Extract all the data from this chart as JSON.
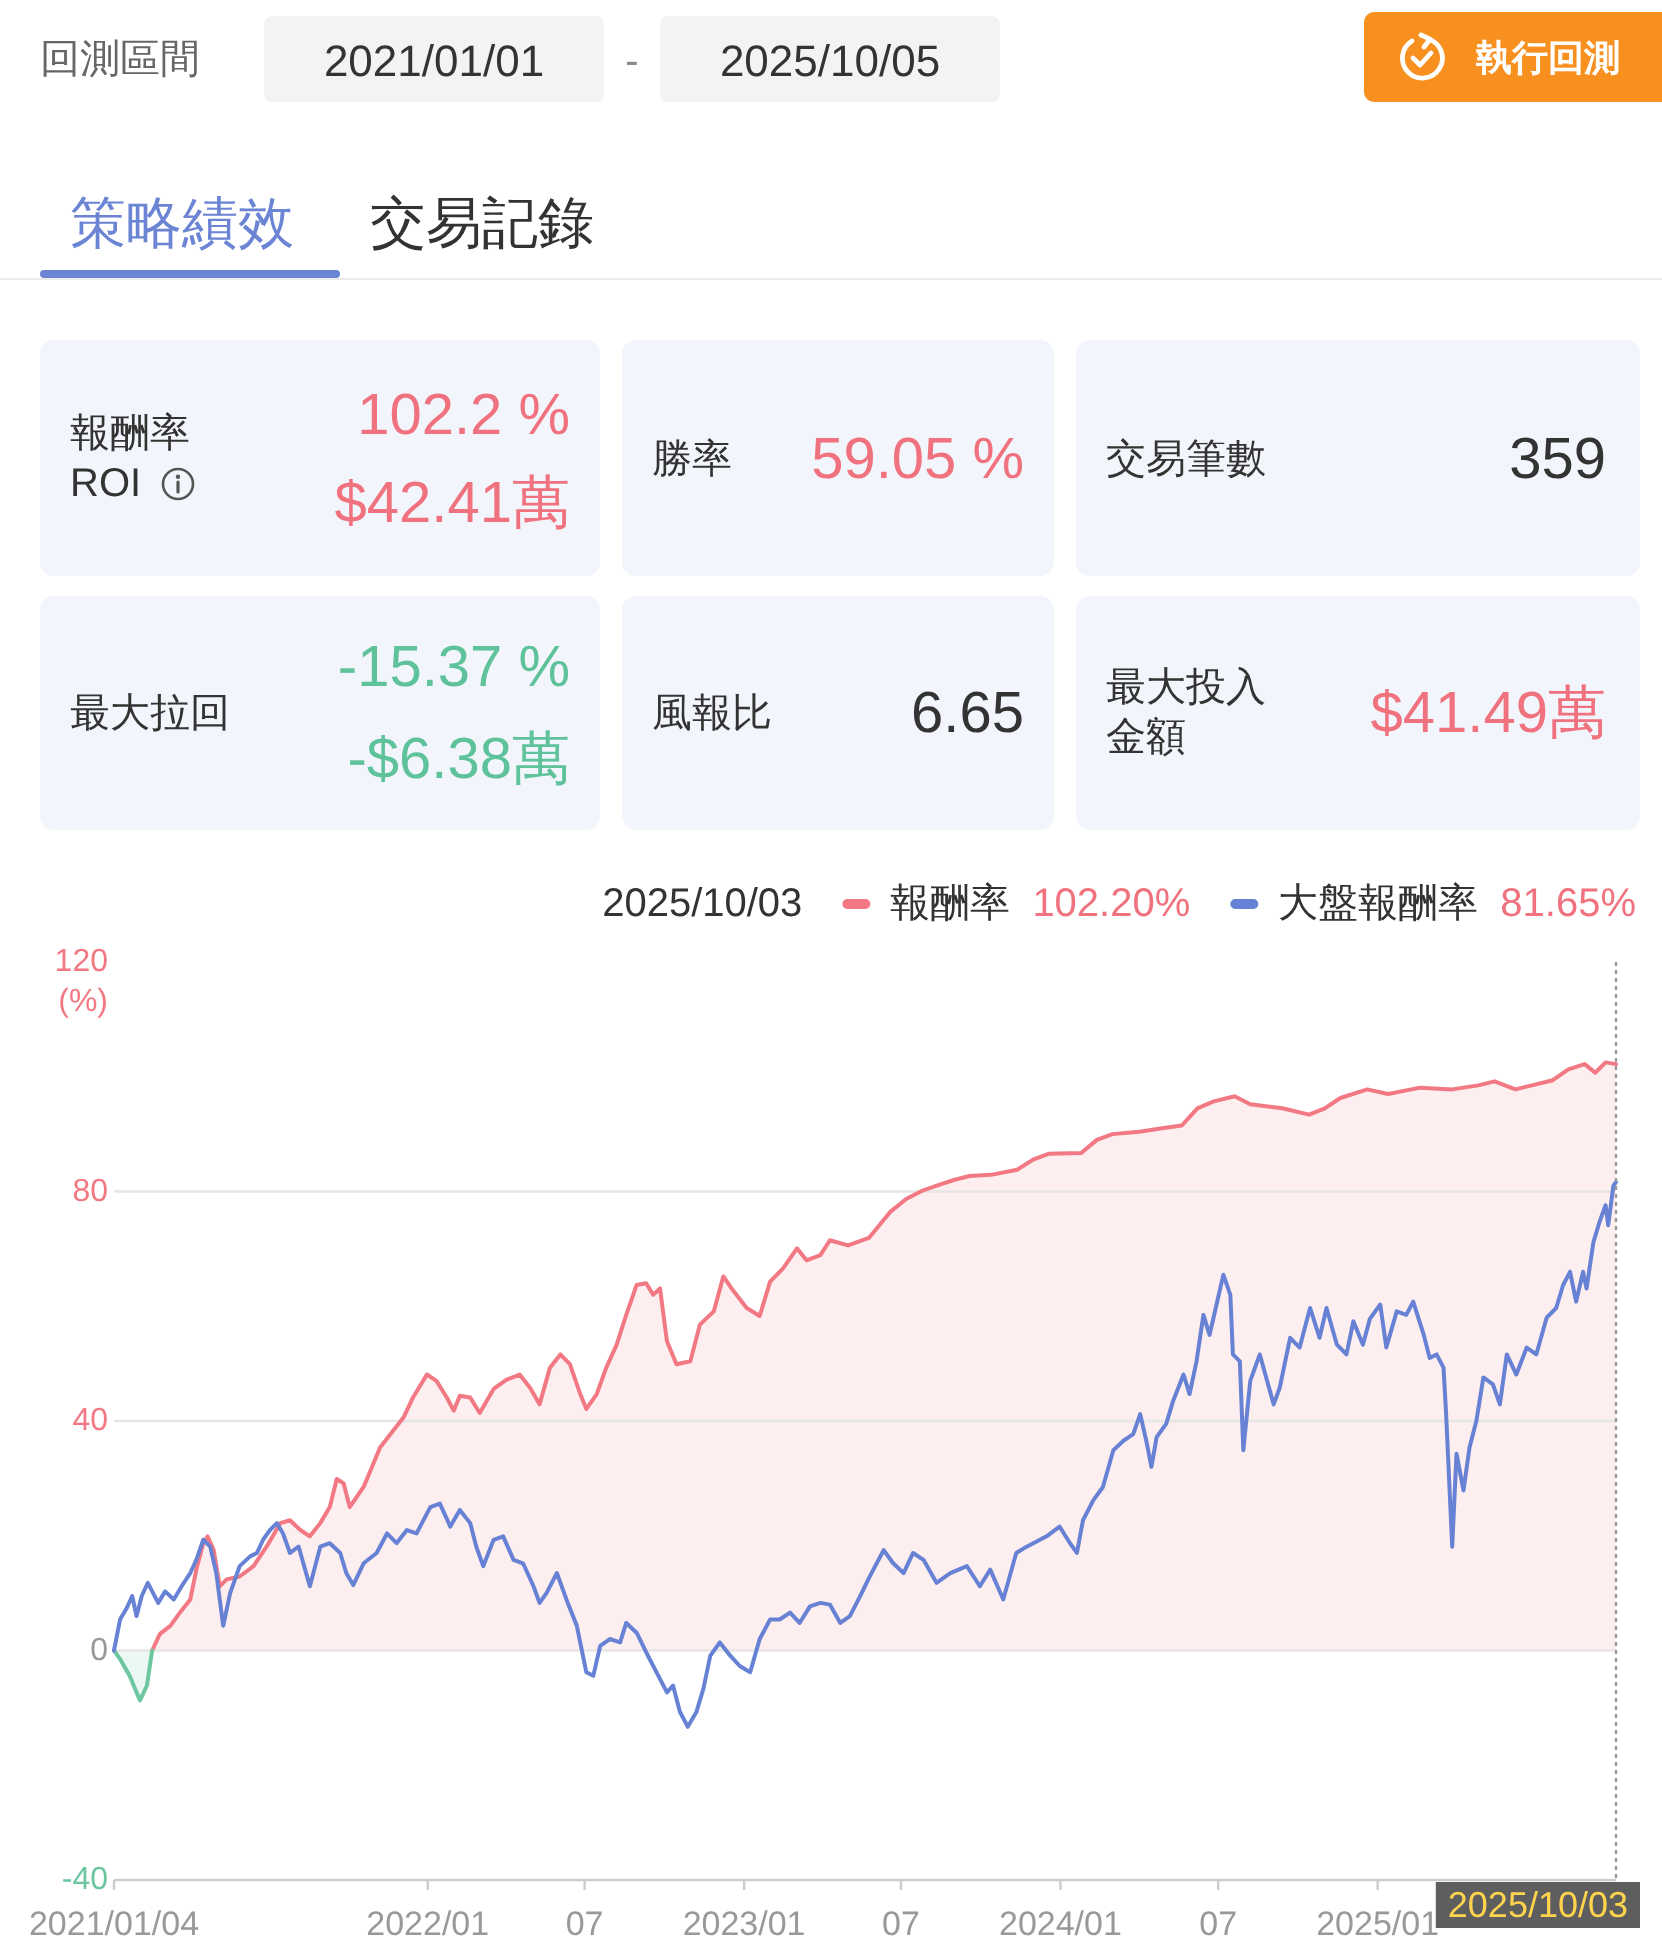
{
  "chart_data": [
    {
      "type": "other",
      "annotations": [
        "回測區間",
        "2021/01/01",
        "-",
        "2025/10/05",
        "執行回測",
        "策略績效",
        "交易記錄",
        "報酬率",
        "ROI",
        "102.2 %",
        "$42.41萬",
        "勝率",
        "59.05 %",
        "交易筆數",
        "359",
        "最大拉回",
        "-15.37 %",
        "-$6.38萬",
        "風報比",
        "6.65",
        "最大投入金額",
        "$41.49萬"
      ]
    },
    {
      "type": "line",
      "ylabel": "(%)",
      "annotations": [
        "2025/10/03",
        "102.20%",
        "81.65%"
      ],
      "xlim": [
        "2021-01-04",
        "2025-10-03"
      ],
      "xticks": [
        {
          "value": "2021-01-04",
          "label": "2021/01/04"
        },
        {
          "value": "2022-01",
          "label": "2022/01"
        },
        {
          "value": "2022-07",
          "label": "07"
        },
        {
          "value": "2023-01",
          "label": "2023/01"
        },
        {
          "value": "2023-07",
          "label": "07"
        },
        {
          "value": "2024-01",
          "label": "2024/01"
        },
        {
          "value": "2024-07",
          "label": "07"
        },
        {
          "value": "2025-01",
          "label": "2025/01"
        }
      ],
      "ylim": [
        -40,
        120
      ],
      "yticks": [
        -40,
        0,
        40,
        80,
        120
      ],
      "grid": "y",
      "legend": "top right",
      "ref_lines": [
        {
          "axis": "x",
          "value": "2025-10-03",
          "label": "2025/10/03",
          "line_style": "dotted"
        }
      ],
      "series": [
        {
          "name": "報酬率",
          "type": "area",
          "color": "#f27983",
          "x": [
            "2021-02-17",
            "2021-02-26",
            "2021-03-10",
            "2021-03-21",
            "2021-04-02",
            "2021-04-09",
            "2021-04-17",
            "2021-04-22",
            "2021-04-29",
            "2021-05-06",
            "2021-05-14",
            "2021-05-29",
            "2021-06-14",
            "2021-06-29",
            "2021-07-15",
            "2021-07-26",
            "2021-08-07",
            "2021-08-18",
            "2021-08-30",
            "2021-09-10",
            "2021-09-18",
            "2021-09-26",
            "2021-10-03",
            "2021-10-19",
            "2021-11-07",
            "2021-11-22",
            "2021-12-04",
            "2021-12-15",
            "2021-12-31",
            "2022-01-11",
            "2022-01-23",
            "2022-01-31",
            "2022-02-07",
            "2022-02-19",
            "2022-03-02",
            "2022-03-18",
            "2022-04-02",
            "2022-04-17",
            "2022-04-29",
            "2022-05-10",
            "2022-05-22",
            "2022-06-03",
            "2022-06-14",
            "2022-06-26",
            "2022-07-03",
            "2022-07-15",
            "2022-07-26",
            "2022-08-07",
            "2022-08-18",
            "2022-08-30",
            "2022-09-10",
            "2022-09-18",
            "2022-09-26",
            "2022-10-04",
            "2022-10-15",
            "2022-10-31",
            "2022-11-11",
            "2022-11-27",
            "2022-12-08",
            "2022-12-20",
            "2023-01-04",
            "2023-01-19",
            "2023-01-31",
            "2023-02-15",
            "2023-03-03",
            "2023-03-14",
            "2023-03-30",
            "2023-04-10",
            "2023-05-01",
            "2023-05-25",
            "2023-06-19",
            "2023-07-07",
            "2023-07-25",
            "2023-08-13",
            "2023-08-31",
            "2023-09-18",
            "2023-10-13",
            "2023-11-12",
            "2023-12-01",
            "2023-12-19",
            "2024-01-25",
            "2024-02-12",
            "2024-03-01",
            "2024-04-01",
            "2024-05-01",
            "2024-05-20",
            "2024-06-07",
            "2024-06-26",
            "2024-07-20",
            "2024-08-07",
            "2024-09-13",
            "2024-10-14",
            "2024-11-01",
            "2024-11-19",
            "2024-12-20",
            "2025-01-13",
            "2025-02-19",
            "2025-03-28",
            "2025-04-27",
            "2025-05-16",
            "2025-06-09",
            "2025-06-28",
            "2025-07-22",
            "2025-08-09",
            "2025-08-28",
            "2025-09-09",
            "2025-09-21",
            "2025-10-03"
          ],
          "values": [
            0,
            2.9,
            4.3,
            6.6,
            8.9,
            14.1,
            18.7,
            19.9,
            17.5,
            11.2,
            12.4,
            12.9,
            14.7,
            18.1,
            22.2,
            22.7,
            21.0,
            19.9,
            22.2,
            25.0,
            29.9,
            29.1,
            25.0,
            28.5,
            35.4,
            38.3,
            40.6,
            44.1,
            48.1,
            47.0,
            44.1,
            41.8,
            44.4,
            44.1,
            41.4,
            45.6,
            47.2,
            48.1,
            45.8,
            42.9,
            49.3,
            51.6,
            49.9,
            44.7,
            42.1,
            44.7,
            49.3,
            53.3,
            58.5,
            63.7,
            64.0,
            62.0,
            63.1,
            53.9,
            49.9,
            50.4,
            56.8,
            59.1,
            65.2,
            62.6,
            59.7,
            58.3,
            64.3,
            66.6,
            70.1,
            68.0,
            68.9,
            71.5,
            70.6,
            71.9,
            76.5,
            78.7,
            80.1,
            81.1,
            82.0,
            82.7,
            82.9,
            83.8,
            85.6,
            86.6,
            86.7,
            89.0,
            90.0,
            90.4,
            91.1,
            91.5,
            94.5,
            95.7,
            96.6,
            95.2,
            94.5,
            93.4,
            94.5,
            96.3,
            97.8,
            97.0,
            98.1,
            97.8,
            98.5,
            99.2,
            97.8,
            98.5,
            99.4,
            101.3,
            102.2,
            100.7,
            102.5,
            102.2
          ]
        },
        {
          "type": "area",
          "color": "#6cc6a0",
          "x": [
            "2021-01-04",
            "2021-01-11",
            "2021-01-22",
            "2021-02-03",
            "2021-02-11",
            "2021-02-17"
          ],
          "values": [
            0,
            -1.5,
            -4.4,
            -8.7,
            -6.1,
            0
          ]
        },
        {
          "name": "大盤報酬率",
          "type": "line",
          "color": "#6782d4",
          "x": [
            "2021-01-04",
            "2021-01-11",
            "2021-01-19",
            "2021-01-25",
            "2021-01-30",
            "2021-02-05",
            "2021-02-12",
            "2021-02-24",
            "2021-03-04",
            "2021-03-14",
            "2021-03-23",
            "2021-04-02",
            "2021-04-09",
            "2021-04-17",
            "2021-04-25",
            "2021-05-02",
            "2021-05-10",
            "2021-05-18",
            "2021-05-29",
            "2021-06-10",
            "2021-06-18",
            "2021-06-25",
            "2021-07-03",
            "2021-07-11",
            "2021-07-18",
            "2021-07-26",
            "2021-08-05",
            "2021-08-18",
            "2021-08-30",
            "2021-09-10",
            "2021-09-22",
            "2021-09-29",
            "2021-10-07",
            "2021-10-19",
            "2021-11-03",
            "2021-11-15",
            "2021-11-26",
            "2021-12-08",
            "2021-12-19",
            "2022-01-04",
            "2022-01-15",
            "2022-01-27",
            "2022-02-07",
            "2022-02-19",
            "2022-02-26",
            "2022-03-06",
            "2022-03-18",
            "2022-03-29",
            "2022-04-10",
            "2022-04-21",
            "2022-05-03",
            "2022-05-10",
            "2022-05-18",
            "2022-05-30",
            "2022-06-10",
            "2022-06-22",
            "2022-07-03",
            "2022-07-11",
            "2022-07-19",
            "2022-07-30",
            "2022-08-11",
            "2022-08-18",
            "2022-08-30",
            "2022-09-10",
            "2022-09-22",
            "2022-10-04",
            "2022-10-11",
            "2022-10-19",
            "2022-10-28",
            "2022-11-07",
            "2022-11-15",
            "2022-11-23",
            "2022-12-04",
            "2022-12-16",
            "2022-12-27",
            "2023-01-08",
            "2023-01-19",
            "2023-01-31",
            "2023-02-11",
            "2023-02-23",
            "2023-03-06",
            "2023-03-18",
            "2023-03-30",
            "2023-04-10",
            "2023-04-22",
            "2023-05-03",
            "2023-05-15",
            "2023-05-26",
            "2023-06-11",
            "2023-06-22",
            "2023-07-04",
            "2023-07-15",
            "2023-07-27",
            "2023-08-11",
            "2023-08-27",
            "2023-09-15",
            "2023-09-30",
            "2023-10-12",
            "2023-10-27",
            "2023-11-11",
            "2023-11-23",
            "2023-12-16",
            "2023-12-31",
            "2024-01-12",
            "2024-01-20",
            "2024-01-27",
            "2024-02-08",
            "2024-02-19",
            "2024-03-02",
            "2024-03-14",
            "2024-03-25",
            "2024-04-02",
            "2024-04-09",
            "2024-04-15",
            "2024-04-21",
            "2024-05-02",
            "2024-05-10",
            "2024-05-22",
            "2024-05-29",
            "2024-06-06",
            "2024-06-14",
            "2024-06-21",
            "2024-07-07",
            "2024-07-15",
            "2024-07-18",
            "2024-07-26",
            "2024-07-30",
            "2024-08-07",
            "2024-08-18",
            "2024-09-03",
            "2024-09-10",
            "2024-09-22",
            "2024-10-03",
            "2024-10-15",
            "2024-10-26",
            "2024-11-03",
            "2024-11-15",
            "2024-11-26",
            "2024-12-04",
            "2024-12-15",
            "2024-12-23",
            "2025-01-04",
            "2025-01-11",
            "2025-01-23",
            "2025-02-03",
            "2025-02-11",
            "2025-02-23",
            "2025-03-02",
            "2025-03-10",
            "2025-03-18",
            "2025-03-21",
            "2025-03-28",
            "2025-04-02",
            "2025-04-10",
            "2025-04-17",
            "2025-04-25",
            "2025-05-03",
            "2025-05-14",
            "2025-05-22",
            "2025-05-30",
            "2025-06-10",
            "2025-06-22",
            "2025-07-03",
            "2025-07-15",
            "2025-07-26",
            "2025-08-03",
            "2025-08-11",
            "2025-08-18",
            "2025-08-26",
            "2025-08-30",
            "2025-09-07",
            "2025-09-14",
            "2025-09-21",
            "2025-09-24",
            "2025-09-30",
            "2025-10-03"
          ],
          "values": [
            0,
            5.4,
            7.5,
            9.5,
            6.0,
            9.5,
            11.8,
            8.3,
            10.3,
            8.9,
            11.2,
            13.5,
            15.8,
            19.3,
            18.1,
            13.5,
            4.3,
            10.0,
            14.7,
            16.4,
            17.0,
            19.3,
            21.0,
            22.2,
            20.4,
            17.0,
            18.1,
            11.2,
            18.1,
            18.7,
            17.0,
            13.5,
            11.4,
            15.2,
            17.0,
            20.4,
            18.7,
            21.0,
            20.4,
            25.0,
            25.6,
            21.6,
            24.5,
            22.2,
            18.1,
            14.7,
            19.3,
            19.9,
            15.8,
            15.2,
            11.2,
            8.3,
            10.0,
            13.5,
            8.9,
            4.3,
            -3.8,
            -4.4,
            0.8,
            2.0,
            1.4,
            4.8,
            3.1,
            -0.3,
            -3.8,
            -7.3,
            -6.1,
            -10.7,
            -13.3,
            -10.7,
            -6.7,
            -0.9,
            1.4,
            -0.9,
            -2.7,
            -3.8,
            2.0,
            5.4,
            5.4,
            6.6,
            4.8,
            7.7,
            8.3,
            8.0,
            4.8,
            6.0,
            9.5,
            12.9,
            17.5,
            15.2,
            13.5,
            17.0,
            15.8,
            11.8,
            13.5,
            14.7,
            11.2,
            14.1,
            8.9,
            17.0,
            18.1,
            19.9,
            21.6,
            18.7,
            17.0,
            22.7,
            26.2,
            28.5,
            34.9,
            36.6,
            37.7,
            41.2,
            36.6,
            32.0,
            37.2,
            39.5,
            43.5,
            48.1,
            44.7,
            50.4,
            58.5,
            55.0,
            65.5,
            62.0,
            51.6,
            50.4,
            34.9,
            47.0,
            51.6,
            42.9,
            45.8,
            54.5,
            52.8,
            59.7,
            54.5,
            59.7,
            53.3,
            51.6,
            57.4,
            53.3,
            57.8,
            60.3,
            52.8,
            59.1,
            58.5,
            60.8,
            55.1,
            51.0,
            51.6,
            49.3,
            41.2,
            18.1,
            34.3,
            27.9,
            35.4,
            40.1,
            47.6,
            46.4,
            42.9,
            51.6,
            48.1,
            52.8,
            51.6,
            58.0,
            59.7,
            63.7,
            66.0,
            60.8,
            66.0,
            63.1,
            71.2,
            74.7,
            77.6,
            74.1,
            81.0,
            81.65
          ]
        }
      ]
    }
  ]
}
